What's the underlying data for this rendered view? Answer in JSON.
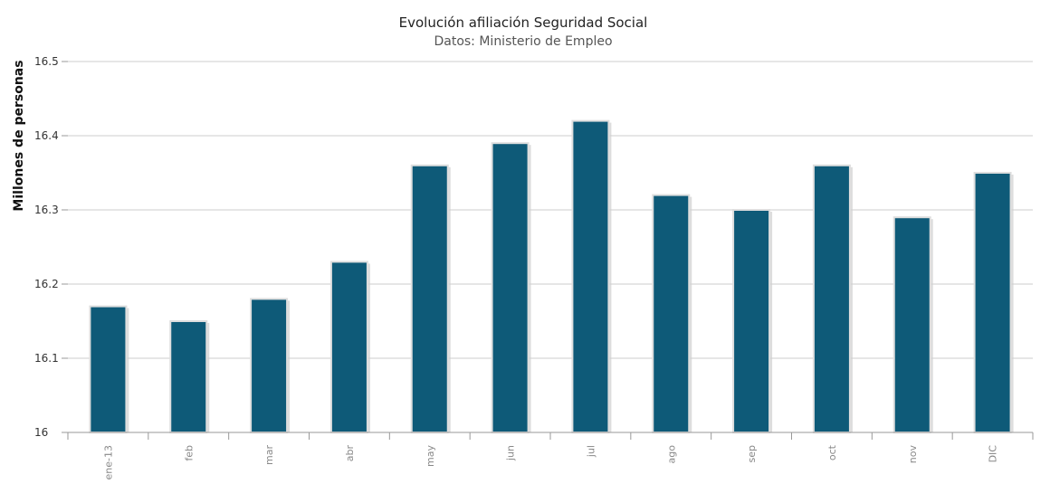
{
  "chart_data": {
    "type": "bar",
    "title": "Evolución afiliación Seguridad Social",
    "subtitle": "Datos: Ministerio de Empleo",
    "xlabel": "",
    "ylabel": "Millones de personas",
    "categories": [
      "ene-13",
      "feb",
      "mar",
      "abr",
      "may",
      "jun",
      "jul",
      "ago",
      "sep",
      "oct",
      "nov",
      "DIC"
    ],
    "values": [
      16.17,
      16.15,
      16.18,
      16.23,
      16.36,
      16.39,
      16.42,
      16.32,
      16.3,
      16.36,
      16.29,
      16.35
    ],
    "ylim": [
      16,
      16.5
    ],
    "yticks": [
      16,
      16.1,
      16.2,
      16.3,
      16.4,
      16.5
    ],
    "ytick_labels": [
      "16",
      "16.1",
      "16.2",
      "16.3",
      "16.4",
      "16.5"
    ],
    "grid": true,
    "bar_color": "#0e5a78"
  }
}
